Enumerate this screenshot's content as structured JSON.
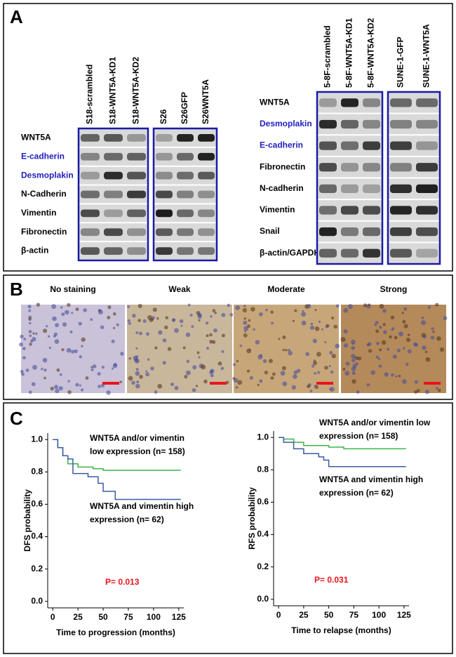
{
  "panel_a": {
    "label": "A",
    "highlight_color": "#1f1fbf",
    "blocks": [
      {
        "rows": [
          "WNT5A",
          "E-cadherin",
          "Desmoplakin",
          "N-Cadherin",
          "Vimentin",
          "Fibronectin",
          "β-actin"
        ],
        "highlight_rows": [
          1,
          2
        ],
        "boxes": [
          {
            "columns": [
              "S18-scrambled",
              "S18-WNT5A-KD1",
              "S18-WNT5A-KD2"
            ]
          },
          {
            "columns": [
              "S26",
              "S26GFP",
              "S26WNT5A"
            ]
          }
        ]
      },
      {
        "rows": [
          "WNT5A",
          "Desmoplakin",
          "E-cadherin",
          "Fibronectin",
          "N-cadherin",
          "Vimentin",
          "Snail",
          "β-actin/GAPDH"
        ],
        "highlight_rows": [
          1,
          2
        ],
        "boxes": [
          {
            "columns": [
              "5-8F-scrambled",
              "5-8F-WNT5A-KD1",
              "5-8F-WNT5A-KD2"
            ]
          },
          {
            "columns": [
              "SUNE-1-GFP",
              "SUNE-1-WNT5A"
            ]
          }
        ]
      }
    ]
  },
  "panel_b": {
    "label": "B",
    "images": [
      "No staining",
      "Weak",
      "Moderate",
      "Strong"
    ]
  },
  "panel_c": {
    "label": "C"
  },
  "chart_data": [
    {
      "type": "line",
      "x_label": "Time to progression (months)",
      "y_label": "DFS probability",
      "xlim": [
        -5,
        130
      ],
      "xticks": [
        0,
        25,
        50,
        75,
        100,
        125
      ],
      "ylim": [
        -0.04,
        1.04
      ],
      "yticks": [
        {
          "value": 0,
          "label": "0.0"
        },
        {
          "value": 0.2,
          "label": "0.2"
        },
        {
          "value": 0.4,
          "label": "0.4"
        },
        {
          "value": 0.6,
          "label": "0.6"
        },
        {
          "value": 0.8,
          "label": "0.8"
        },
        {
          "value": 1,
          "label": "1.0"
        }
      ],
      "series": [
        {
          "name": "WNT5A and/or vimentin low expression (n= 158)",
          "color": "#3cb44b",
          "x": [
            0,
            5,
            5,
            10,
            10,
            15,
            15,
            25,
            25,
            40,
            40,
            50,
            50,
            127
          ],
          "values": [
            1,
            1,
            0.95,
            0.95,
            0.9,
            0.9,
            0.85,
            0.85,
            0.83,
            0.83,
            0.82,
            0.82,
            0.81,
            0.81
          ]
        },
        {
          "name": "WNT5A and vimentin high expression (n= 62)",
          "color": "#3b5ba5",
          "x": [
            0,
            5,
            5,
            10,
            10,
            15,
            15,
            20,
            20,
            35,
            35,
            45,
            45,
            50,
            50,
            62,
            62,
            127
          ],
          "values": [
            1,
            1,
            0.95,
            0.95,
            0.9,
            0.9,
            0.88,
            0.88,
            0.79,
            0.79,
            0.77,
            0.77,
            0.73,
            0.73,
            0.68,
            0.68,
            0.63,
            0.63
          ]
        }
      ],
      "annotations": [
        "WNT5A and/or vimentin",
        "low expression (n= 158)",
        "WNT5A and vimentin high",
        "expression (n= 62)"
      ],
      "pvalue": "P= 0.013",
      "pvalue_color": "#e8141c"
    },
    {
      "type": "line",
      "x_label": "Time to relapse (months)",
      "y_label": "RFS probability",
      "xlim": [
        -5,
        130
      ],
      "xticks": [
        0,
        25,
        50,
        75,
        100,
        125
      ],
      "ylim": [
        -0.04,
        1.04
      ],
      "yticks": [
        {
          "value": 0,
          "label": "0.0"
        },
        {
          "value": 0.2,
          "label": "0.2"
        },
        {
          "value": 0.4,
          "label": "0.4"
        },
        {
          "value": 0.6,
          "label": "0.6"
        },
        {
          "value": 0.8,
          "label": "0.8"
        },
        {
          "value": 1,
          "label": "1.0"
        }
      ],
      "series": [
        {
          "name": "WNT5A and/or vimentin low expression (n= 158)",
          "color": "#3cb44b",
          "x": [
            0,
            5,
            5,
            15,
            15,
            25,
            25,
            50,
            50,
            65,
            65,
            127
          ],
          "values": [
            1,
            1,
            0.99,
            0.99,
            0.97,
            0.97,
            0.95,
            0.95,
            0.94,
            0.94,
            0.93,
            0.93
          ]
        },
        {
          "name": "WNT5A and vimentin high expression (n= 62)",
          "color": "#3b5ba5",
          "x": [
            0,
            5,
            5,
            15,
            15,
            25,
            25,
            40,
            40,
            45,
            45,
            50,
            50,
            127
          ],
          "values": [
            1,
            1,
            0.97,
            0.97,
            0.93,
            0.93,
            0.9,
            0.9,
            0.88,
            0.88,
            0.86,
            0.86,
            0.82,
            0.82
          ]
        }
      ],
      "annotations": [
        "WNT5A and/or vimentin low",
        "expression (n= 158)",
        "WNT5A and vimentin high",
        "expression (n= 62)"
      ],
      "pvalue": "P= 0.031",
      "pvalue_color": "#e8141c"
    }
  ]
}
